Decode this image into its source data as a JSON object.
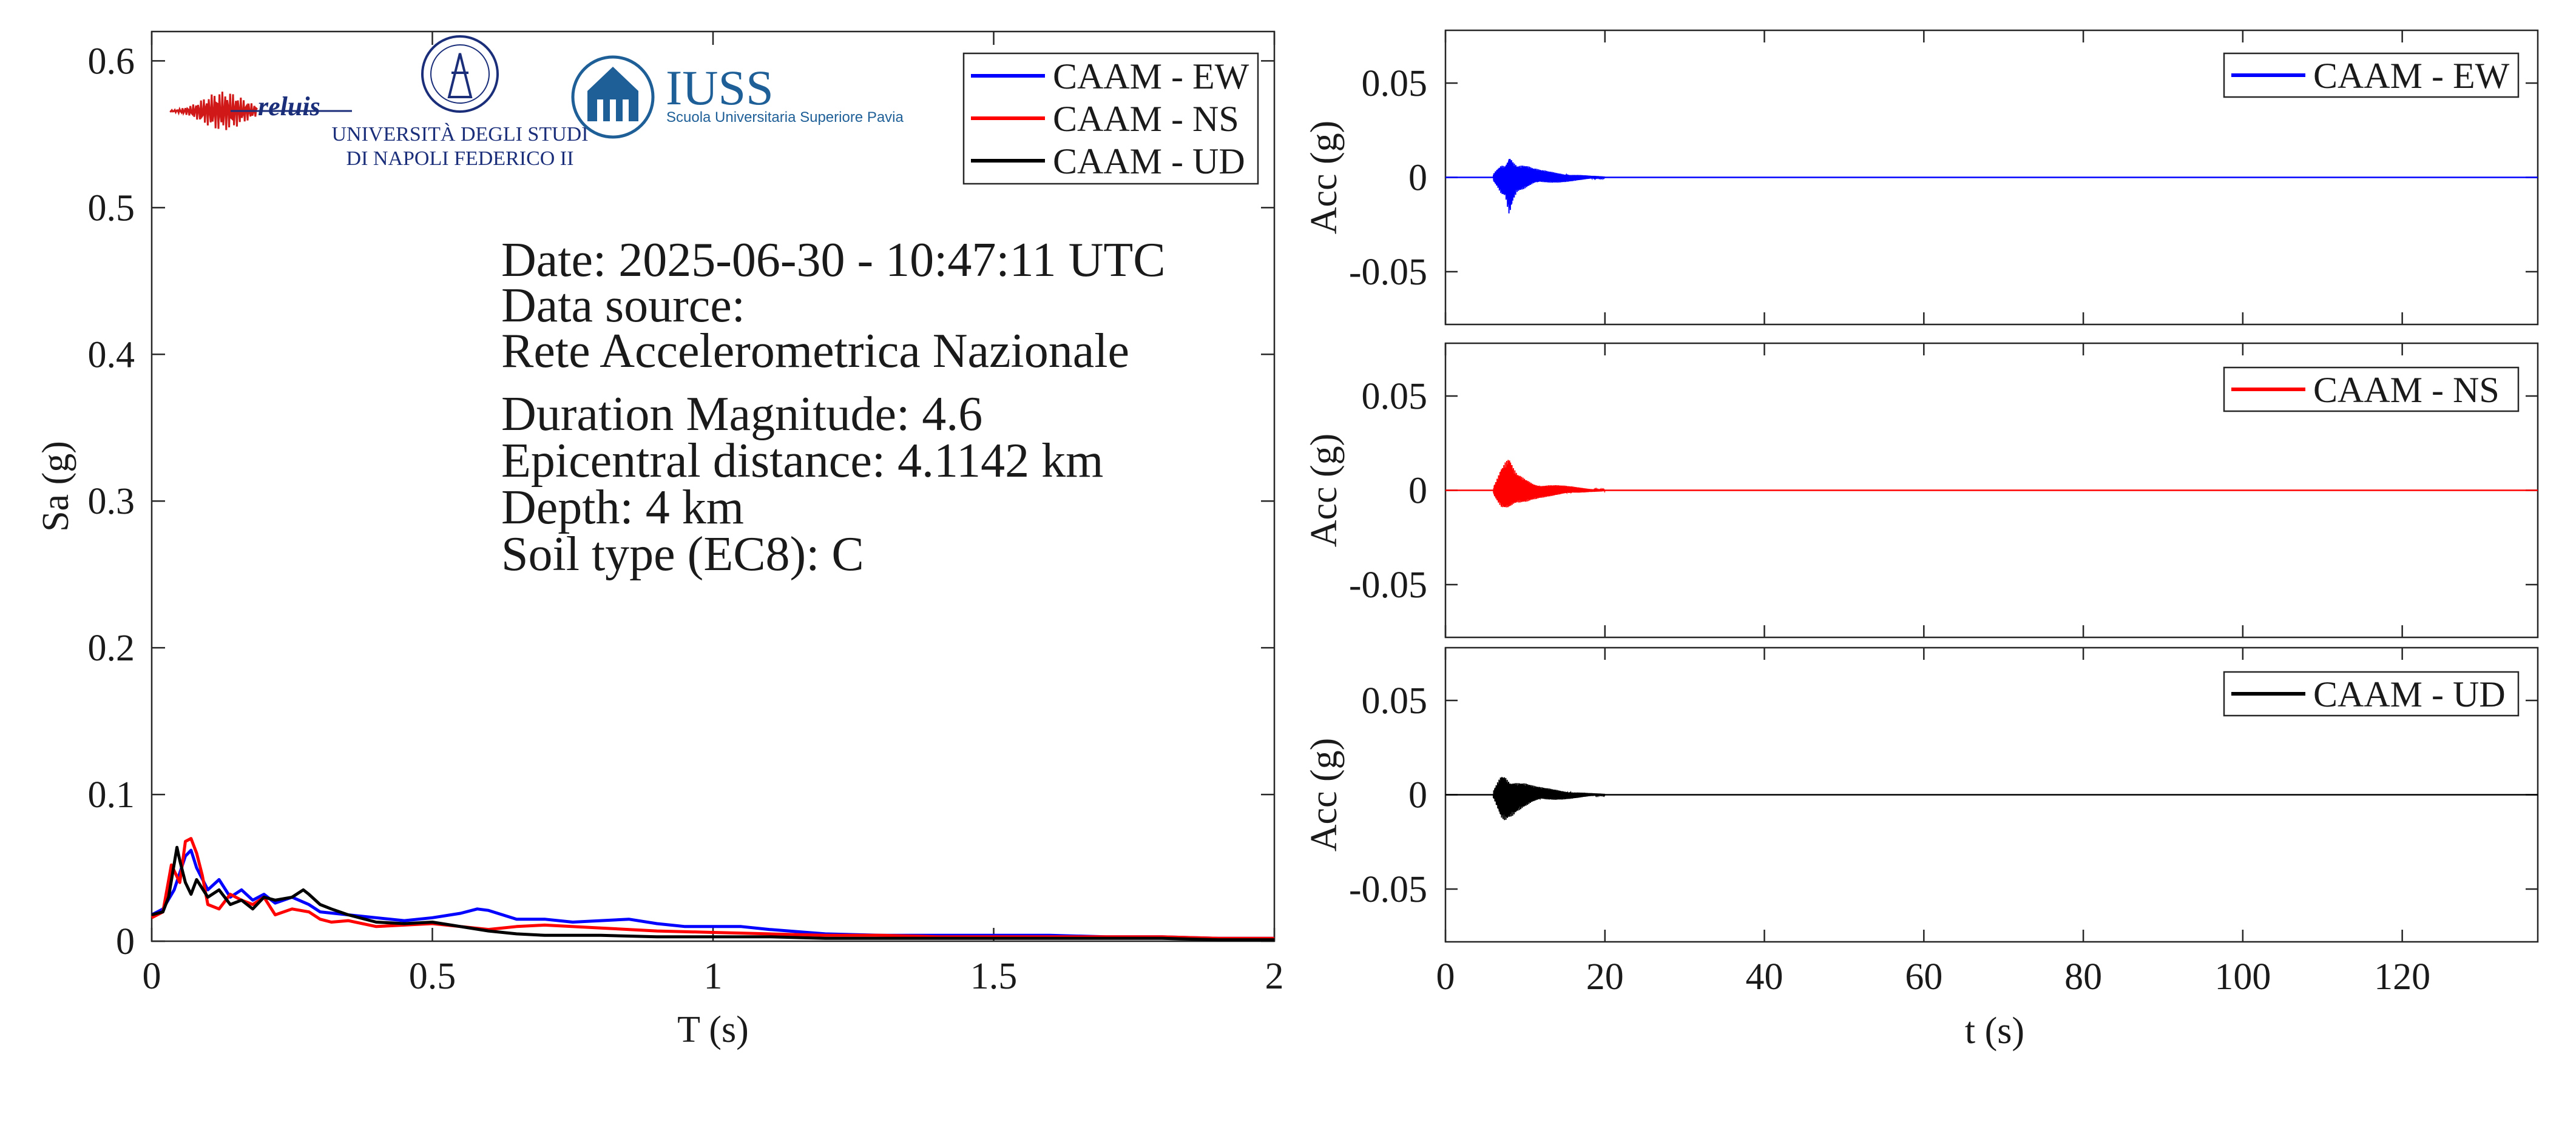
{
  "logos": {
    "reluis_text": "reluis",
    "unina_line1": "UNIVERSITÀ DEGLI STUDI",
    "unina_line2": "DI NAPOLI FEDERICO II",
    "iuss_title": "IUSS",
    "iuss_subtitle": "Scuola Universitaria Superiore Pavia"
  },
  "info": {
    "date": "Date: 2025-06-30 - 10:47:11 UTC",
    "source_label": "Data source:",
    "source_value": "Rete Accelerometrica Nazionale",
    "magnitude": "Duration Magnitude: 4.6",
    "distance": "Epicentral distance: 4.1142 km",
    "depth": "Depth: 4 km",
    "soil": "Soil type (EC8): C"
  },
  "chart_data": [
    {
      "type": "line",
      "xlabel": "T (s)",
      "ylabel": "Sa (g)",
      "xlim": [
        0,
        2
      ],
      "ylim": [
        0,
        0.62
      ],
      "xticks": [
        0,
        0.5,
        1,
        1.5,
        2
      ],
      "xtick_labels": [
        "0",
        "0.5",
        "1",
        "1.5",
        "2"
      ],
      "yticks": [
        0,
        0.1,
        0.2,
        0.3,
        0.4,
        0.5,
        0.6
      ],
      "ytick_labels": [
        "0",
        "0.1",
        "0.2",
        "0.3",
        "0.4",
        "0.5",
        "0.6"
      ],
      "grid": false,
      "legend": "top-right",
      "series": [
        {
          "name": "CAAM - EW",
          "color": "#0000ff",
          "x": [
            0,
            0.02,
            0.04,
            0.06,
            0.07,
            0.08,
            0.1,
            0.12,
            0.14,
            0.16,
            0.18,
            0.2,
            0.22,
            0.25,
            0.28,
            0.3,
            0.35,
            0.4,
            0.45,
            0.5,
            0.55,
            0.58,
            0.6,
            0.65,
            0.7,
            0.75,
            0.8,
            0.85,
            0.9,
            0.95,
            1.0,
            1.05,
            1.1,
            1.2,
            1.3,
            1.4,
            1.5,
            1.6,
            1.7,
            1.8,
            1.9,
            2.0
          ],
          "values": [
            0.018,
            0.022,
            0.035,
            0.058,
            0.062,
            0.05,
            0.035,
            0.042,
            0.03,
            0.035,
            0.028,
            0.032,
            0.026,
            0.03,
            0.025,
            0.02,
            0.018,
            0.016,
            0.014,
            0.016,
            0.019,
            0.022,
            0.021,
            0.015,
            0.015,
            0.013,
            0.014,
            0.015,
            0.012,
            0.01,
            0.01,
            0.01,
            0.008,
            0.005,
            0.004,
            0.004,
            0.004,
            0.004,
            0.003,
            0.003,
            0.002,
            0.002
          ]
        },
        {
          "name": "CAAM - NS",
          "color": "#ff0000",
          "x": [
            0,
            0.02,
            0.035,
            0.05,
            0.06,
            0.07,
            0.08,
            0.09,
            0.1,
            0.12,
            0.14,
            0.16,
            0.18,
            0.2,
            0.22,
            0.25,
            0.28,
            0.3,
            0.32,
            0.35,
            0.4,
            0.45,
            0.5,
            0.55,
            0.6,
            0.65,
            0.7,
            0.8,
            0.9,
            1.0,
            1.1,
            1.2,
            1.3,
            1.4,
            1.5,
            1.6,
            1.7,
            1.8,
            1.9,
            2.0
          ],
          "values": [
            0.016,
            0.02,
            0.052,
            0.04,
            0.068,
            0.07,
            0.06,
            0.045,
            0.025,
            0.022,
            0.032,
            0.028,
            0.025,
            0.03,
            0.018,
            0.022,
            0.02,
            0.015,
            0.013,
            0.014,
            0.01,
            0.011,
            0.012,
            0.01,
            0.008,
            0.01,
            0.011,
            0.009,
            0.007,
            0.006,
            0.005,
            0.004,
            0.004,
            0.003,
            0.003,
            0.003,
            0.003,
            0.003,
            0.002,
            0.002
          ]
        },
        {
          "name": "CAAM - UD",
          "color": "#000000",
          "x": [
            0,
            0.02,
            0.03,
            0.045,
            0.05,
            0.06,
            0.07,
            0.08,
            0.1,
            0.12,
            0.14,
            0.16,
            0.18,
            0.2,
            0.22,
            0.25,
            0.27,
            0.28,
            0.3,
            0.32,
            0.35,
            0.4,
            0.45,
            0.5,
            0.55,
            0.6,
            0.65,
            0.7,
            0.8,
            0.9,
            1.0,
            1.1,
            1.2,
            1.3,
            1.4,
            1.5,
            1.6,
            1.7,
            1.8,
            1.9,
            2.0
          ],
          "values": [
            0.018,
            0.02,
            0.03,
            0.064,
            0.055,
            0.04,
            0.032,
            0.042,
            0.03,
            0.035,
            0.025,
            0.028,
            0.022,
            0.03,
            0.028,
            0.03,
            0.035,
            0.032,
            0.025,
            0.022,
            0.018,
            0.013,
            0.012,
            0.013,
            0.01,
            0.007,
            0.005,
            0.004,
            0.004,
            0.003,
            0.003,
            0.003,
            0.002,
            0.002,
            0.002,
            0.002,
            0.002,
            0.002,
            0.002,
            0.001,
            0.001
          ]
        }
      ]
    },
    {
      "type": "line",
      "xlabel": "",
      "ylabel": "Acc (g)",
      "xlim": [
        0,
        137
      ],
      "ylim": [
        -0.078,
        0.078
      ],
      "yticks": [
        -0.05,
        0,
        0.05
      ],
      "ytick_labels": [
        "-0.05",
        "0",
        "0.05"
      ],
      "legend": "top-right",
      "series": [
        {
          "name": "CAAM - EW",
          "color": "#0000ff",
          "t": [
            6,
            7,
            7.5,
            8,
            8.5,
            9,
            10,
            11,
            12,
            14,
            16,
            18,
            20
          ],
          "peak": [
            0.002,
            0.009,
            0.01,
            0.02,
            0.012,
            0.008,
            0.007,
            0.005,
            0.004,
            0.003,
            0.002,
            0.001,
            0.0005
          ]
        }
      ]
    },
    {
      "type": "line",
      "xlabel": "",
      "ylabel": "Acc (g)",
      "xlim": [
        0,
        137
      ],
      "ylim": [
        -0.078,
        0.078
      ],
      "yticks": [
        -0.05,
        0,
        0.05
      ],
      "ytick_labels": [
        "-0.05",
        "0",
        "0.05"
      ],
      "legend": "top-right",
      "series": [
        {
          "name": "CAAM - NS",
          "color": "#ff0000",
          "t": [
            6,
            7,
            7.5,
            8,
            8.5,
            9,
            10,
            11,
            12,
            14,
            16,
            18,
            20
          ],
          "peak": [
            0.002,
            0.012,
            0.015,
            0.017,
            0.012,
            0.009,
            0.007,
            0.005,
            0.004,
            0.003,
            0.002,
            0.001,
            0.0005
          ]
        }
      ]
    },
    {
      "type": "line",
      "xlabel": "t (s)",
      "ylabel": "Acc (g)",
      "xlim": [
        0,
        137
      ],
      "ylim": [
        -0.078,
        0.078
      ],
      "xticks": [
        0,
        20,
        40,
        60,
        80,
        100,
        120
      ],
      "xtick_labels": [
        "0",
        "20",
        "40",
        "60",
        "80",
        "100",
        "120"
      ],
      "yticks": [
        -0.05,
        0,
        0.05
      ],
      "ytick_labels": [
        "-0.05",
        "0",
        "0.05"
      ],
      "legend": "top-right",
      "series": [
        {
          "name": "CAAM - UD",
          "color": "#000000",
          "t": [
            6,
            7,
            7.5,
            8,
            8.5,
            9,
            10,
            11,
            12,
            14,
            16,
            18,
            20
          ],
          "peak": [
            0.002,
            0.013,
            0.014,
            0.012,
            0.011,
            0.009,
            0.007,
            0.005,
            0.004,
            0.003,
            0.002,
            0.001,
            0.0005
          ]
        }
      ]
    }
  ]
}
